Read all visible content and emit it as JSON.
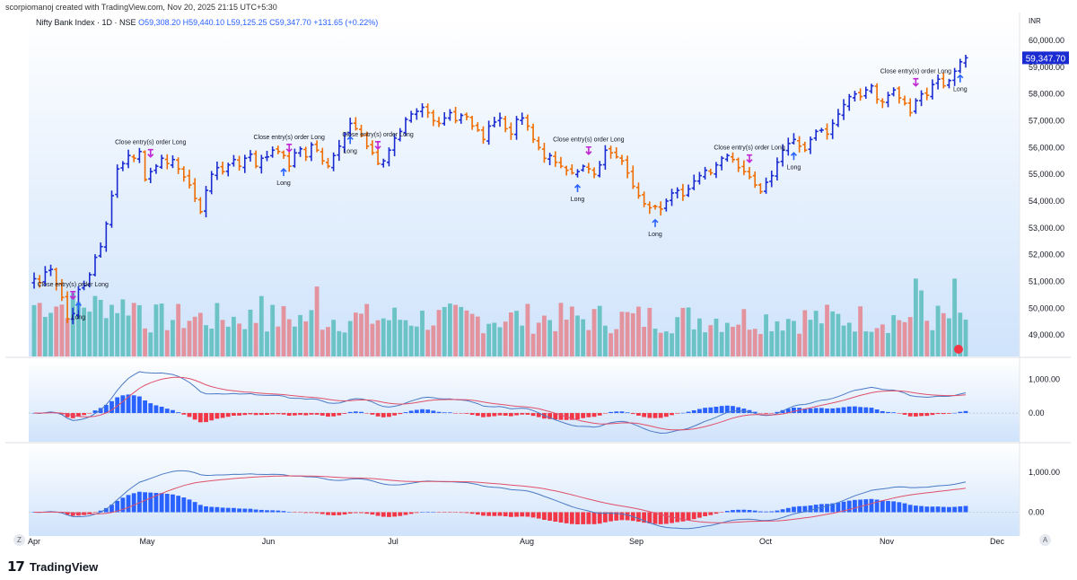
{
  "header": {
    "created_by": "scorpiomanoj created with TradingView.com, Nov 20, 2025 21:15 UTC+5:30"
  },
  "symbol": {
    "title": "Nifty Bank Index · 1D · NSE",
    "ohlc": "O59,308.20  H59,440.10  L59,125.25  C59,347.70  +131.65 (+0.22%)"
  },
  "price_axis": {
    "currency": "INR",
    "last_price_label": "59,347.70"
  },
  "footer": {
    "logo_mark": "17",
    "logo_text": "TradingView",
    "left_button": "Z",
    "right_button": "A"
  },
  "colors": {
    "bull_bar": "#1a2bd1",
    "bear_bar": "#ef6c00",
    "vol_up": "#5fbfc0",
    "vol_down": "#e48a94",
    "macd_line": "#4a7ac4",
    "signal_line": "#e0506a",
    "hist_up": "#2962ff",
    "hist_down": "#f23645",
    "buy_arrow": "#2962ff",
    "exit_arrow": "#c026d3"
  },
  "chart_data": [
    {
      "type": "ohlc",
      "title": "",
      "x_labels": [
        "Apr",
        "May",
        "Jun",
        "Jul",
        "Aug",
        "Sep",
        "Oct",
        "Nov",
        "Dec"
      ],
      "y_ticks": [
        "60,000.00",
        "59,000.00",
        "58,000.00",
        "57,000.00",
        "56,000.00",
        "55,000.00",
        "54,000.00",
        "53,000.00",
        "52,000.00",
        "51,000.00",
        "50,000.00",
        "49,000.00"
      ],
      "ylim": [
        48200,
        60300
      ],
      "close": [
        51100,
        50950,
        51350,
        51450,
        50900,
        50400,
        49600,
        49800,
        50700,
        50850,
        51250,
        51900,
        52300,
        53150,
        54200,
        55200,
        55400,
        55700,
        55600,
        55850,
        54800,
        55100,
        55300,
        55600,
        55400,
        55550,
        55200,
        54900,
        54600,
        54100,
        53600,
        54400,
        55000,
        55250,
        55100,
        55350,
        55550,
        55300,
        55600,
        55750,
        55300,
        55600,
        55650,
        55900,
        55850,
        55700,
        55300,
        55800,
        55950,
        55650,
        56100,
        55900,
        55500,
        55300,
        55700,
        56050,
        56500,
        56900,
        56700,
        56450,
        56050,
        55800,
        55400,
        55500,
        55900,
        56350,
        56600,
        57050,
        57250,
        57350,
        57500,
        57300,
        57000,
        56900,
        57100,
        57300,
        57000,
        57200,
        57150,
        56800,
        56650,
        56300,
        56800,
        56950,
        57100,
        56700,
        56500,
        57050,
        57100,
        56800,
        56300,
        56000,
        55600,
        55700,
        55450,
        55300,
        55150,
        55050,
        55100,
        55300,
        55200,
        55000,
        55350,
        55900,
        55800,
        55650,
        55500,
        55050,
        54550,
        54200,
        53900,
        53750,
        53800,
        53700,
        54000,
        54300,
        54400,
        54200,
        54450,
        54750,
        54950,
        55150,
        55050,
        55350,
        55600,
        55700,
        55550,
        55250,
        55100,
        54900,
        54600,
        54350,
        54700,
        54950,
        55450,
        55900,
        56150,
        56300,
        56050,
        55900,
        56300,
        56600,
        56650,
        56500,
        56900,
        57250,
        57600,
        57900,
        58000,
        57900,
        58150,
        58300,
        57800,
        57700,
        57950,
        58150,
        57850,
        57650,
        57300,
        57750,
        58000,
        57950,
        58350,
        58550,
        58300,
        58500,
        58850,
        59200,
        59347.7
      ],
      "volume_pane_ylim": [
        0,
        100
      ],
      "annotations": [
        {
          "label": "Close entry(s) order Long",
          "signal": "exit",
          "date_index": 11
        },
        {
          "label": "Long",
          "signal": "entry",
          "date_index": 13
        },
        {
          "label": "Close entry(s) order Long",
          "signal": "exit",
          "date_index": 33
        },
        {
          "label": "Close entry(s) order Long",
          "signal": "exit",
          "date_index": 74
        },
        {
          "label": "Long",
          "signal": "entry",
          "date_index": 72
        },
        {
          "label": "Long",
          "signal": "entry",
          "date_index": 91
        },
        {
          "label": "Close entry(s) order Long",
          "signal": "exit",
          "date_index": 99
        },
        {
          "label": "Close entry(s) order Long",
          "signal": "exit",
          "date_index": 159
        },
        {
          "label": "Long",
          "signal": "entry",
          "date_index": 157
        },
        {
          "label": "Long",
          "signal": "entry",
          "date_index": 178
        },
        {
          "label": "Close entry(s) order Long",
          "signal": "exit",
          "date_index": 206
        },
        {
          "label": "Long",
          "signal": "entry",
          "date_index": 218
        },
        {
          "label": "Close entry(s) order Long",
          "signal": "exit",
          "date_index": 254
        },
        {
          "label": "Long",
          "signal": "entry",
          "date_index": 266
        }
      ]
    },
    {
      "type": "macd",
      "y_ticks": [
        "1,000.00",
        "0.00"
      ],
      "ylim": [
        -800,
        1550
      ]
    },
    {
      "type": "macd",
      "y_ticks": [
        "1,000.00",
        "0.00"
      ],
      "ylim": [
        -550,
        1650
      ]
    }
  ]
}
